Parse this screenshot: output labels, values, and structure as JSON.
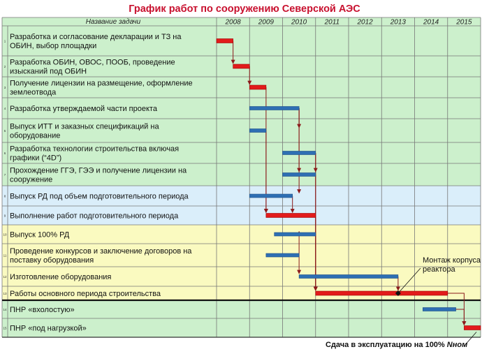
{
  "chart_data": {
    "type": "gantt",
    "title": "График работ по сооружению Северской АЭС",
    "task_column_header": "Название задачи",
    "years": [
      "2008",
      "2009",
      "2010",
      "2011",
      "2012",
      "2013",
      "2014",
      "2015"
    ],
    "tasks": [
      {
        "n": "1",
        "lines": [
          "Разработка и согласование декларации и ТЗ на",
          "ОБИН, выбор площадки"
        ],
        "start": 2008.0,
        "end": 2008.5,
        "critical": true
      },
      {
        "n": "2",
        "lines": [
          "Разработка ОБИН, ОВОС, ПООБ, проведение",
          "изысканий под ОБИН"
        ],
        "start": 2008.5,
        "end": 2009.0,
        "critical": true
      },
      {
        "n": "3",
        "lines": [
          "Получение лицензии на размещение, оформление",
          "землеотвода"
        ],
        "start": 2009.0,
        "end": 2009.5,
        "critical": true
      },
      {
        "n": "4",
        "lines": [
          "Разработка утверждаемой части проекта"
        ],
        "start": 2009.0,
        "end": 2010.5,
        "critical": false
      },
      {
        "n": "5",
        "lines": [
          "Выпуск ИТТ и заказных спецификаций на",
          "оборудование"
        ],
        "start": 2009.0,
        "end": 2009.5,
        "critical": false
      },
      {
        "n": "6",
        "lines": [
          "Разработка технологии строительства включая",
          "графики (“4D”)"
        ],
        "start": 2010.0,
        "end": 2011.0,
        "critical": false
      },
      {
        "n": "7",
        "lines": [
          "Прохождение ГГЭ, ГЭЭ и получение лицензии на",
          "сооружение"
        ],
        "start": 2010.0,
        "end": 2011.0,
        "critical": false
      },
      {
        "n": "8",
        "lines": [
          "Выпуск РД под объем подготовительного периода"
        ],
        "start": 2009.0,
        "end": 2010.3,
        "critical": false
      },
      {
        "n": "9",
        "lines": [
          "Выполнение работ подготовительного периода"
        ],
        "start": 2009.5,
        "end": 2011.0,
        "critical": true
      },
      {
        "n": "10",
        "lines": [
          "Выпуск 100% РД"
        ],
        "start": 2009.75,
        "end": 2011.0,
        "critical": false
      },
      {
        "n": "11",
        "lines": [
          "Проведение конкурсов и заключение договоров на",
          "поставку оборудования"
        ],
        "start": 2009.5,
        "end": 2010.5,
        "critical": false
      },
      {
        "n": "12",
        "lines": [
          "Изготовление оборудования"
        ],
        "start": 2010.5,
        "end": 2013.5,
        "critical": false
      },
      {
        "n": "13",
        "lines": [
          "Работы основного периода строительства"
        ],
        "start": 2011.0,
        "end": 2015.0,
        "critical": true
      },
      {
        "n": "14",
        "lines": [
          "ПНР «вхолостую»"
        ],
        "start": 2014.25,
        "end": 2015.25,
        "critical": false
      },
      {
        "n": "15",
        "lines": [
          "ПНР «под нагрузкой»"
        ],
        "start": 2015.5,
        "end": 2016.0,
        "critical": true
      }
    ],
    "sections": [
      {
        "rows": [
          1,
          7
        ],
        "color": "#ccf0cc"
      },
      {
        "rows": [
          8,
          9
        ],
        "color": "#daeefa"
      },
      {
        "rows": [
          10,
          13
        ],
        "color": "#fafac0"
      },
      {
        "rows": [
          14,
          15
        ],
        "color": "#ccf0cc"
      }
    ],
    "annotations": [
      {
        "lines": [
          "Монтаж корпуса",
          "реактора"
        ],
        "x": 2013.5,
        "row": 13
      },
      {
        "text": "Сдача в эксплуатацию на 100%",
        "italic_suffix": "Nном",
        "x": 2016.0,
        "row": 15
      }
    ],
    "colors": {
      "critical": "#e21b1b",
      "normal": "#2e6fb3",
      "link": "#8b1a1a"
    }
  }
}
